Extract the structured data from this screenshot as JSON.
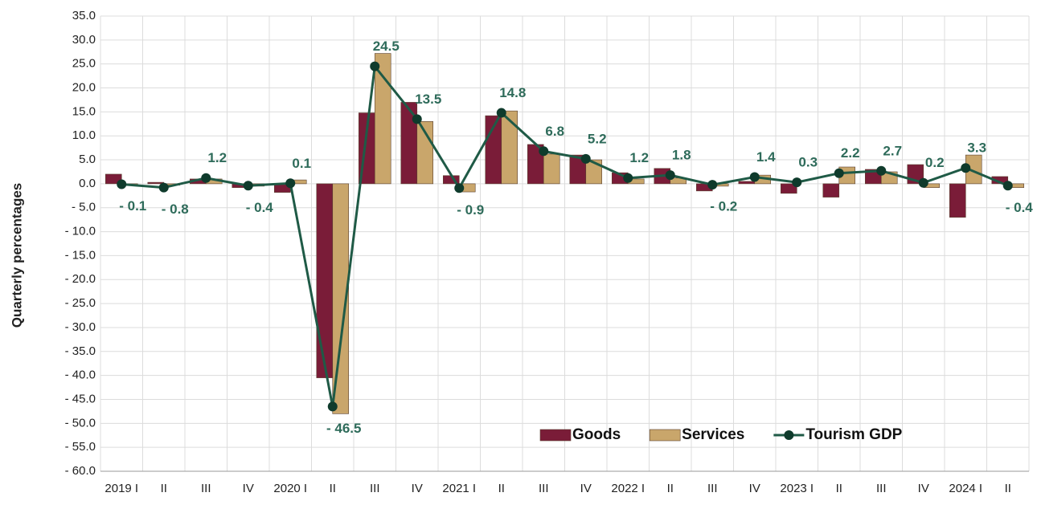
{
  "chart_data": {
    "type": "bar_line",
    "y_label": "Quarterly percentages",
    "categories": [
      "2019 I",
      "II",
      "III",
      "IV",
      "2020 I",
      "II",
      "III",
      "IV",
      "2021 I",
      "II",
      "III",
      "IV",
      "2022 I",
      "II",
      "III",
      "IV",
      "2023 I",
      "II",
      "III",
      "IV",
      "2024 I",
      "II"
    ],
    "series": [
      {
        "name": "Goods",
        "type": "bar",
        "color": "#7a1c38",
        "values": [
          2.0,
          0.3,
          1.0,
          -0.8,
          -1.8,
          -40.5,
          14.8,
          17.0,
          1.7,
          14.2,
          8.2,
          6.0,
          2.3,
          3.2,
          -1.5,
          0.5,
          -2.0,
          -2.8,
          3.0,
          4.0,
          -7.0,
          1.5
        ]
      },
      {
        "name": "Services",
        "type": "bar",
        "color": "#c9a66b",
        "values": [
          -0.3,
          -0.3,
          1.0,
          -0.5,
          0.8,
          -48.0,
          27.2,
          13.0,
          -1.7,
          15.2,
          6.2,
          5.0,
          1.0,
          1.2,
          -0.5,
          1.8,
          0.0,
          3.5,
          2.5,
          -0.8,
          6.0,
          -0.8
        ]
      },
      {
        "name": "Tourism GDP",
        "type": "line",
        "color": "#1f5a46",
        "marker_color": "#0f3b2c",
        "values": [
          -0.1,
          -0.8,
          1.2,
          -0.4,
          0.1,
          -46.5,
          24.5,
          13.5,
          -0.9,
          14.8,
          6.8,
          5.2,
          1.2,
          1.8,
          -0.2,
          1.4,
          0.3,
          2.2,
          2.7,
          0.2,
          3.3,
          -0.4
        ],
        "value_labels": [
          "- 0.1",
          "- 0.8",
          "1.2",
          "- 0.4",
          "0.1",
          "- 46.5",
          "24.5",
          "13.5",
          "- 0.9",
          "14.8",
          "6.8",
          "5.2",
          "1.2",
          "1.8",
          "- 0.2",
          "1.4",
          "0.3",
          "2.2",
          "2.7",
          "0.2",
          "3.3",
          "- 0.4"
        ]
      }
    ],
    "ylim": [
      -60,
      35
    ],
    "yticks": [
      {
        "value": 35,
        "label": "35.0"
      },
      {
        "value": 30,
        "label": "30.0"
      },
      {
        "value": 25,
        "label": "25.0"
      },
      {
        "value": 20,
        "label": "20.0"
      },
      {
        "value": 15,
        "label": "15.0"
      },
      {
        "value": 10,
        "label": "10.0"
      },
      {
        "value": 5,
        "label": "5.0"
      },
      {
        "value": 0,
        "label": "0.0"
      },
      {
        "value": -5,
        "label": "- 5.0"
      },
      {
        "value": -10,
        "label": "- 10.0"
      },
      {
        "value": -15,
        "label": "- 15.0"
      },
      {
        "value": -20,
        "label": "- 20.0"
      },
      {
        "value": -25,
        "label": "- 25.0"
      },
      {
        "value": -30,
        "label": "- 30.0"
      },
      {
        "value": -35,
        "label": "- 35.0"
      },
      {
        "value": -40,
        "label": "- 40.0"
      },
      {
        "value": -45,
        "label": "- 45.0"
      },
      {
        "value": -50,
        "label": "- 50.0"
      },
      {
        "value": -55,
        "label": "- 55.0"
      },
      {
        "value": -60,
        "label": "- 60.0"
      }
    ],
    "grid": true,
    "legend": "lower right"
  }
}
